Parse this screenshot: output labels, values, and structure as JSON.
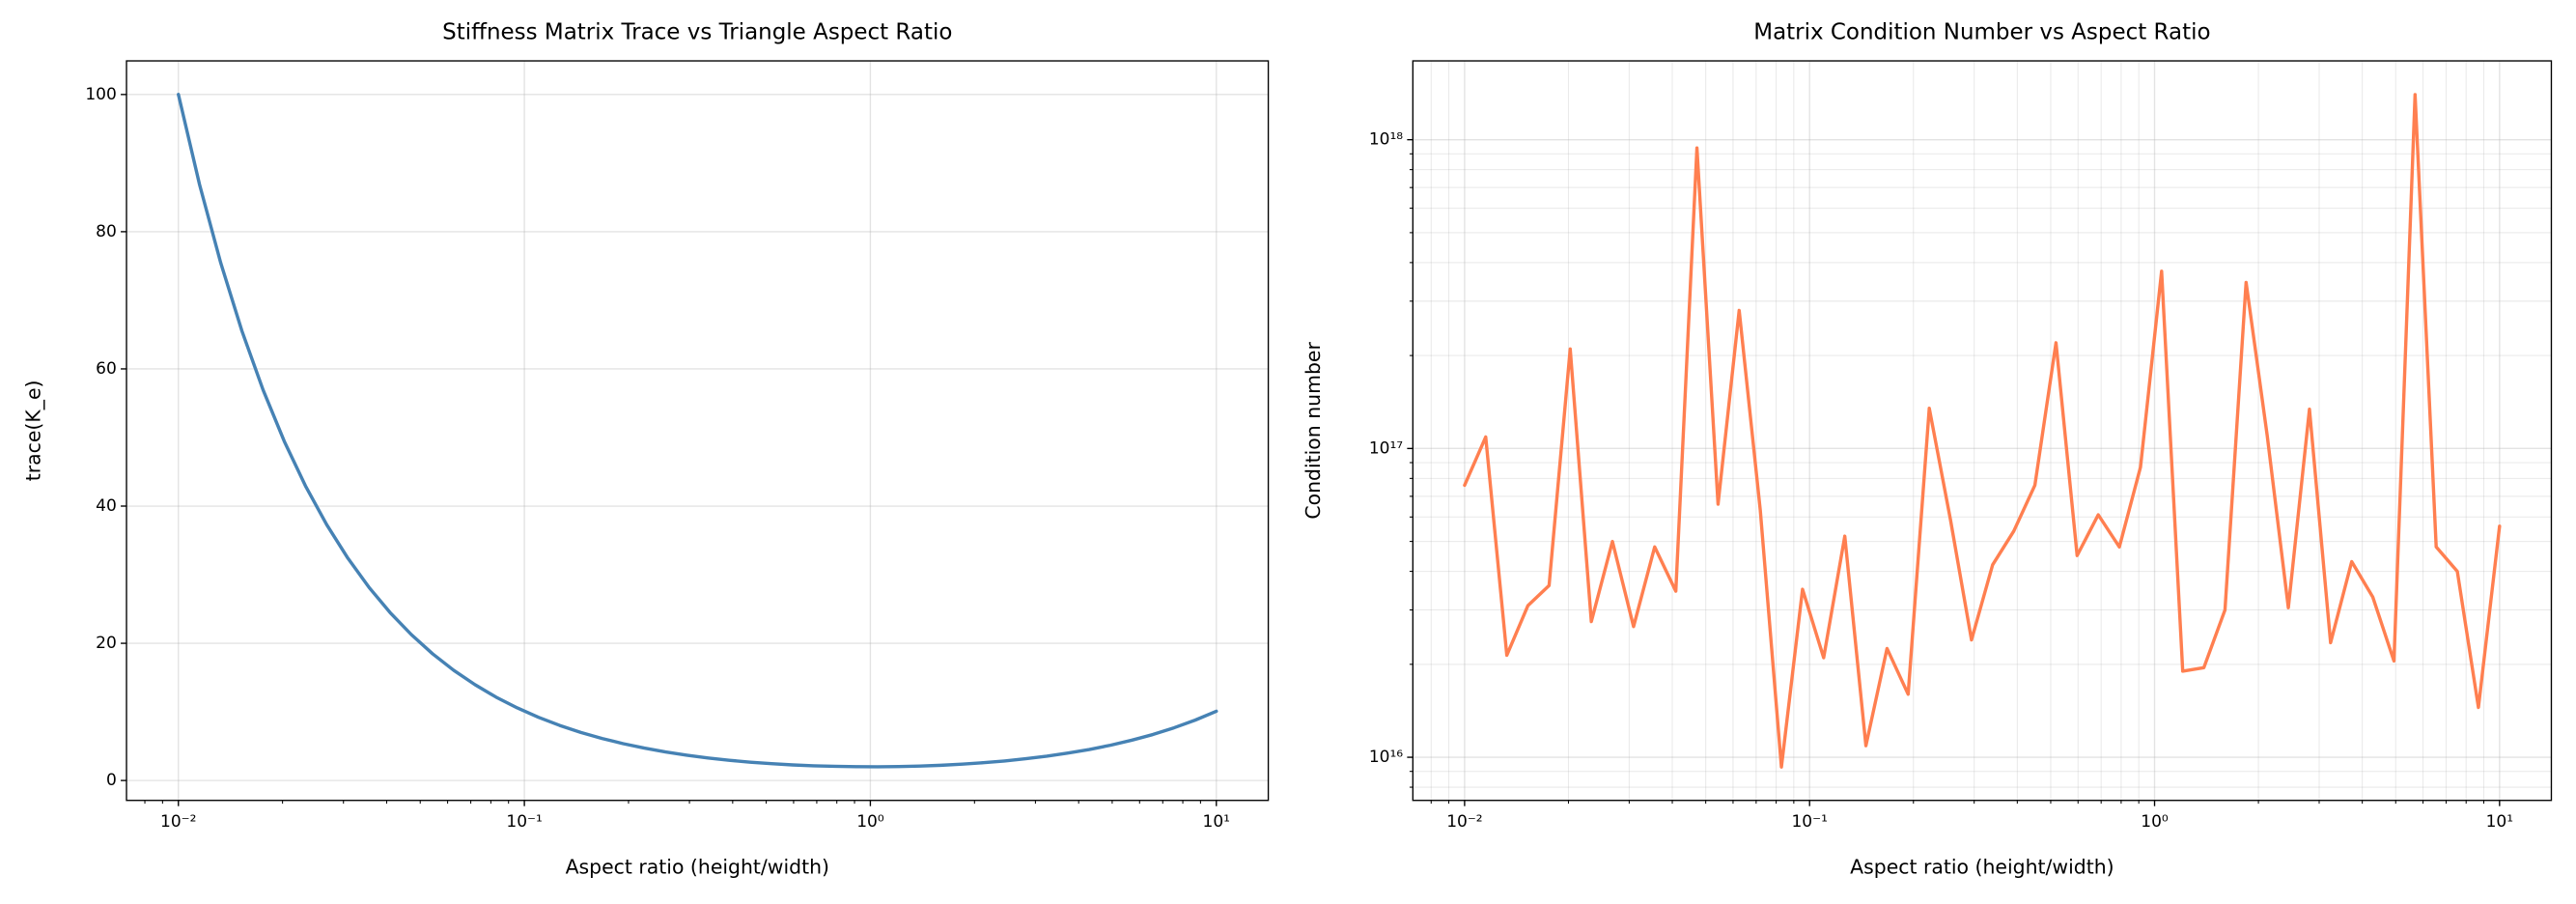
{
  "chart_data": [
    {
      "type": "line",
      "title": "Stiffness Matrix Trace vs Triangle Aspect Ratio",
      "xlabel": "Aspect ratio (height/width)",
      "ylabel": "trace(K_e)",
      "color": "#4682b4",
      "xlog": true,
      "ylog": false,
      "grid": true,
      "minor_grid": false,
      "x": [
        0.01,
        0.011514,
        0.013257,
        0.015264,
        0.017575,
        0.020236,
        0.0233,
        0.026827,
        0.030888,
        0.035565,
        0.04095,
        0.04715,
        0.054287,
        0.062506,
        0.07197,
        0.082864,
        0.09541,
        0.10985,
        0.12649,
        0.14563,
        0.16768,
        0.19307,
        0.2223,
        0.25595,
        0.29471,
        0.33932,
        0.39069,
        0.44984,
        0.51795,
        0.59636,
        0.68665,
        0.7906,
        0.9103,
        1.0481,
        1.2068,
        1.3895,
        1.5999,
        1.8421,
        2.121,
        2.4421,
        2.8118,
        3.2375,
        3.7276,
        4.2919,
        4.9417,
        5.6898,
        6.5512,
        7.5431,
        8.6851,
        10
      ],
      "values": [
        100.01,
        86.86,
        75.44,
        65.53,
        56.92,
        49.44,
        42.94,
        37.3,
        32.41,
        28.15,
        24.46,
        21.26,
        18.47,
        16.06,
        13.97,
        12.15,
        10.58,
        9.21,
        8.03,
        7.01,
        6.13,
        5.37,
        4.72,
        4.16,
        3.69,
        3.29,
        2.95,
        2.67,
        2.45,
        2.27,
        2.14,
        2.06,
        2.01,
        2.0,
        2.04,
        2.11,
        2.22,
        2.39,
        2.59,
        2.85,
        3.17,
        3.55,
        4.0,
        4.52,
        5.14,
        5.87,
        6.7,
        7.68,
        8.8,
        10.1
      ],
      "xlim": [
        0.00708,
        14.13
      ],
      "ylim": [
        -2.9,
        104.9
      ],
      "xticks": [
        {
          "value": 0.01,
          "label": "10⁻²"
        },
        {
          "value": 0.1,
          "label": "10⁻¹"
        },
        {
          "value": 1,
          "label": "10⁰"
        },
        {
          "value": 10,
          "label": "10¹"
        }
      ],
      "xminorticks": [
        0.008,
        0.009,
        0.02,
        0.03,
        0.04,
        0.05,
        0.06,
        0.07,
        0.08,
        0.09,
        0.2,
        0.3,
        0.4,
        0.5,
        0.6,
        0.7,
        0.8,
        0.9,
        2,
        3,
        4,
        5,
        6,
        7,
        8,
        9
      ],
      "yticks": [
        0,
        20,
        40,
        60,
        80,
        100
      ],
      "yminorticks": []
    },
    {
      "type": "line",
      "title": "Matrix Condition Number vs Aspect Ratio",
      "xlabel": "Aspect ratio (height/width)",
      "ylabel": "Condition number",
      "color": "#ff7f50",
      "xlog": true,
      "ylog": true,
      "grid": true,
      "minor_grid": true,
      "x": [
        0.01,
        0.011514,
        0.013257,
        0.015264,
        0.017575,
        0.020236,
        0.0233,
        0.026827,
        0.030888,
        0.035565,
        0.04095,
        0.04715,
        0.054287,
        0.062506,
        0.07197,
        0.082864,
        0.09541,
        0.10985,
        0.12649,
        0.14563,
        0.16768,
        0.19307,
        0.2223,
        0.25595,
        0.29471,
        0.33932,
        0.39069,
        0.44984,
        0.51795,
        0.59636,
        0.68665,
        0.7906,
        0.9103,
        1.0481,
        1.2068,
        1.3895,
        1.5999,
        1.8421,
        2.121,
        2.4421,
        2.8118,
        3.2375,
        3.7276,
        4.2919,
        4.9417,
        5.6898,
        6.5512,
        7.5431,
        8.6851,
        10
      ],
      "values": [
        7.6e+16,
        1.09e+17,
        2.14e+16,
        3.1e+16,
        3.6e+16,
        2.1e+17,
        2.75e+16,
        5e+16,
        2.65e+16,
        4.8e+16,
        3.45e+16,
        9.4e+17,
        6.6e+16,
        2.8e+17,
        6.3e+16,
        9300000000000000.0,
        3.5e+16,
        2.1e+16,
        5.2e+16,
        1.09e+16,
        2.25e+16,
        1.6e+16,
        1.35e+17,
        5.9e+16,
        2.4e+16,
        4.2e+16,
        5.4e+16,
        7.6e+16,
        2.2e+17,
        4.5e+16,
        6.1e+16,
        4.8e+16,
        8.7e+16,
        3.75e+17,
        1.9e+16,
        1.95e+16,
        3e+16,
        3.45e+17,
        1.1e+17,
        3.05e+16,
        1.34e+17,
        2.35e+16,
        4.3e+16,
        3.3e+16,
        2.05e+16,
        1.4e+18,
        4.8e+16,
        4e+16,
        1.45e+16,
        5.6e+16
      ],
      "xlim": [
        0.00708,
        14.13
      ],
      "ylim": [
        7250000000000000.0,
        1.8e+18
      ],
      "xticks": [
        {
          "value": 0.01,
          "label": "10⁻²"
        },
        {
          "value": 0.1,
          "label": "10⁻¹"
        },
        {
          "value": 1,
          "label": "10⁰"
        },
        {
          "value": 10,
          "label": "10¹"
        }
      ],
      "xminorticks": [
        0.008,
        0.009,
        0.02,
        0.03,
        0.04,
        0.05,
        0.06,
        0.07,
        0.08,
        0.09,
        0.2,
        0.3,
        0.4,
        0.5,
        0.6,
        0.7,
        0.8,
        0.9,
        2,
        3,
        4,
        5,
        6,
        7,
        8,
        9
      ],
      "yticks": [
        {
          "value": 1e+16,
          "label": "10¹⁶"
        },
        {
          "value": 1e+17,
          "label": "10¹⁷"
        },
        {
          "value": 1e+18,
          "label": "10¹⁸"
        }
      ],
      "yminorticks": [
        8000000000000000.0,
        9000000000000000.0,
        2e+16,
        3e+16,
        4e+16,
        5e+16,
        6e+16,
        7e+16,
        8e+16,
        9e+16,
        2e+17,
        3e+17,
        4e+17,
        5e+17,
        6e+17,
        7e+17,
        8e+17,
        9e+17
      ]
    }
  ]
}
